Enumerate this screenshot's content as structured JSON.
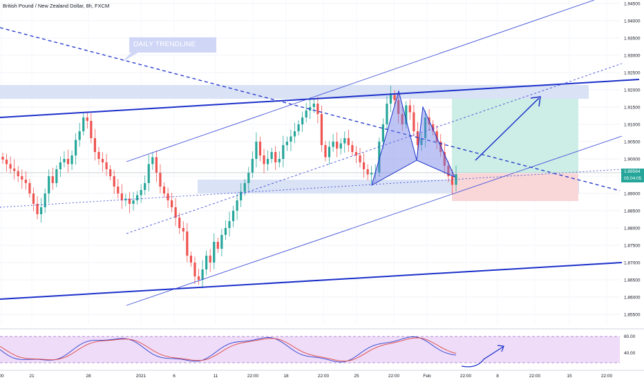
{
  "header": {
    "symbol_title": "British Pound / New Zealand Dollar, 8h, FXCM"
  },
  "annotations": {
    "trendline_label": "DAILY TRENDLINE"
  },
  "price_axis": {
    "labels": [
      "1.94500",
      "1.94000",
      "1.93500",
      "1.93000",
      "1.92500",
      "1.92000",
      "1.91500",
      "1.91000",
      "1.90500",
      "1.90000",
      "1.89500",
      "1.89000",
      "1.88500",
      "1.88000",
      "1.87500",
      "1.87000",
      "1.86500",
      "1.86000",
      "1.85500"
    ],
    "current_price": "1.89564",
    "countdown": "05:04:05"
  },
  "oscillator_axis": {
    "labels": [
      "80.00",
      "40.00"
    ]
  },
  "time_axis": {
    "labels": [
      "00",
      "21",
      "28",
      "2021",
      "6",
      "11",
      "22:00",
      "18",
      "22:00",
      "25",
      "22:00",
      "Feb",
      "22:00",
      "8",
      "22:00",
      "15",
      "22:00"
    ]
  },
  "colors": {
    "bull": "#26a69a",
    "bear": "#ef5350",
    "trend": "#1a2fc9",
    "zone": "#d6dff5",
    "target_zone": "#cdeee6",
    "stop_zone": "#f9d7d9",
    "osc_fill": "#eedcf8"
  },
  "chart_data": {
    "type": "candlestick",
    "symbol": "British Pound / New Zealand Dollar",
    "interval": "8h",
    "source": "FXCM",
    "y_range": [
      1.852,
      1.946
    ],
    "x_ticks": [
      "00",
      "21",
      "28",
      "2021",
      "6",
      "11",
      "22:00",
      "18",
      "22:00",
      "25",
      "22:00",
      "Feb",
      "22:00",
      "8",
      "22:00",
      "15",
      "22:00"
    ],
    "y_ticks": [
      1.945,
      1.94,
      1.935,
      1.93,
      1.925,
      1.92,
      1.915,
      1.91,
      1.905,
      1.9,
      1.895,
      1.89,
      1.885,
      1.88,
      1.875,
      1.87,
      1.865,
      1.86,
      1.855
    ],
    "current_price": 1.89564,
    "close": [
      1.8998,
      1.8985,
      1.8972,
      1.8965,
      1.895,
      1.894,
      1.893,
      1.89,
      1.887,
      1.884,
      1.886,
      1.89,
      1.895,
      1.893,
      1.897,
      1.899,
      1.9,
      1.8985,
      1.901,
      1.9055,
      1.908,
      1.912,
      1.911,
      1.906,
      1.902,
      1.9,
      1.899,
      1.897,
      1.895,
      1.892,
      1.89,
      1.888,
      1.8885,
      1.887,
      1.888,
      1.8895,
      1.891,
      1.893,
      1.8985,
      1.9005,
      1.896,
      1.892,
      1.89,
      1.888,
      1.886,
      1.883,
      1.88,
      1.879,
      1.872,
      1.87,
      1.866,
      1.865,
      1.868,
      1.872,
      1.87,
      1.876,
      1.874,
      1.878,
      1.88,
      1.882,
      1.885,
      1.888,
      1.8905,
      1.893,
      1.896,
      1.9,
      1.905,
      1.901,
      1.8985,
      1.9,
      1.902,
      1.899,
      1.9,
      1.904,
      1.905,
      1.9065,
      1.908,
      1.91,
      1.912,
      1.914,
      1.915,
      1.916,
      1.913,
      1.904,
      1.9005,
      1.9035,
      1.905,
      1.903,
      1.9045,
      1.906,
      1.904,
      1.902,
      1.901,
      1.899,
      1.897,
      1.8955,
      1.896,
      1.896,
      1.905,
      1.91,
      1.916,
      1.9185,
      1.917,
      1.913,
      1.91,
      1.9155,
      1.9135,
      1.908,
      1.904,
      1.906,
      1.912,
      1.91,
      1.908,
      1.905,
      1.902,
      1.898,
      1.895,
      1.8925,
      1.8956
    ],
    "indicator": {
      "type": "stochastic",
      "levels": [
        80,
        20
      ],
      "axis_labels": [
        "80.00",
        "40.00"
      ]
    }
  }
}
